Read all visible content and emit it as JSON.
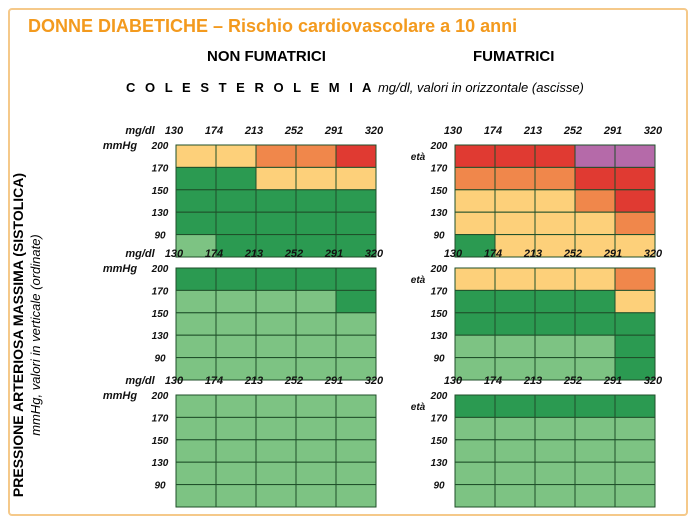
{
  "title": "DONNE DIABETICHE – Rischio cardiovascolare a 10 anni",
  "columns": {
    "left": "NON FUMATRICI",
    "right": "FUMATRICI"
  },
  "cholesterol_label": {
    "bold": "C O L E S T E R O L E M I A",
    "italic": "mg/dl, valori in orizzontale (ascisse)"
  },
  "pressure_label": {
    "main": "PRESSIONE ARTERIOSA MASSIMA (SISTOLICA)",
    "sub": "mmHg, valori in verticale (ordinate)"
  },
  "colors": {
    "light_green": "#7dc383",
    "dark_green": "#2b9a51",
    "yellow": "#fdd07a",
    "orange": "#f0874b",
    "red": "#e03a32",
    "purple": "#b56aa9"
  },
  "chart_data": {
    "type": "heatmap",
    "x_unit": "mg/dl",
    "y_unit": "mmHg",
    "age_label": "età",
    "x_ticks": [
      "130",
      "174",
      "213",
      "252",
      "291",
      "320"
    ],
    "y_ticks": [
      "200",
      "170",
      "150",
      "130",
      "90"
    ],
    "legend_note": "cells colored by risk class: light_green < dark_green < yellow < orange < red < purple",
    "panels": [
      {
        "row": 1,
        "group": "NON FUMATRICI",
        "show_age": false,
        "show_units": true,
        "cells": [
          [
            "yellow",
            "yellow",
            "orange",
            "orange",
            "red"
          ],
          [
            "dark_green",
            "dark_green",
            "yellow",
            "yellow",
            "yellow"
          ],
          [
            "dark_green",
            "dark_green",
            "dark_green",
            "dark_green",
            "dark_green"
          ],
          [
            "dark_green",
            "dark_green",
            "dark_green",
            "dark_green",
            "dark_green"
          ],
          [
            "light_green",
            "dark_green",
            "dark_green",
            "dark_green",
            "dark_green"
          ]
        ]
      },
      {
        "row": 1,
        "group": "FUMATRICI",
        "show_age": true,
        "show_units": false,
        "cells": [
          [
            "red",
            "red",
            "red",
            "purple",
            "purple"
          ],
          [
            "orange",
            "orange",
            "orange",
            "red",
            "red"
          ],
          [
            "yellow",
            "yellow",
            "yellow",
            "orange",
            "red"
          ],
          [
            "yellow",
            "yellow",
            "yellow",
            "yellow",
            "orange"
          ],
          [
            "dark_green",
            "yellow",
            "yellow",
            "yellow",
            "yellow"
          ]
        ]
      },
      {
        "row": 2,
        "group": "NON FUMATRICI",
        "show_age": false,
        "show_units": true,
        "cells": [
          [
            "dark_green",
            "dark_green",
            "dark_green",
            "dark_green",
            "dark_green"
          ],
          [
            "light_green",
            "light_green",
            "light_green",
            "light_green",
            "dark_green"
          ],
          [
            "light_green",
            "light_green",
            "light_green",
            "light_green",
            "light_green"
          ],
          [
            "light_green",
            "light_green",
            "light_green",
            "light_green",
            "light_green"
          ],
          [
            "light_green",
            "light_green",
            "light_green",
            "light_green",
            "light_green"
          ]
        ]
      },
      {
        "row": 2,
        "group": "FUMATRICI",
        "show_age": true,
        "show_units": false,
        "cells": [
          [
            "yellow",
            "yellow",
            "yellow",
            "yellow",
            "orange"
          ],
          [
            "dark_green",
            "dark_green",
            "dark_green",
            "dark_green",
            "yellow"
          ],
          [
            "dark_green",
            "dark_green",
            "dark_green",
            "dark_green",
            "dark_green"
          ],
          [
            "light_green",
            "light_green",
            "light_green",
            "light_green",
            "dark_green"
          ],
          [
            "light_green",
            "light_green",
            "light_green",
            "light_green",
            "dark_green"
          ]
        ]
      },
      {
        "row": 3,
        "group": "NON FUMATRICI",
        "show_age": false,
        "show_units": true,
        "cells": [
          [
            "light_green",
            "light_green",
            "light_green",
            "light_green",
            "light_green"
          ],
          [
            "light_green",
            "light_green",
            "light_green",
            "light_green",
            "light_green"
          ],
          [
            "light_green",
            "light_green",
            "light_green",
            "light_green",
            "light_green"
          ],
          [
            "light_green",
            "light_green",
            "light_green",
            "light_green",
            "light_green"
          ],
          [
            "light_green",
            "light_green",
            "light_green",
            "light_green",
            "light_green"
          ]
        ]
      },
      {
        "row": 3,
        "group": "FUMATRICI",
        "show_age": true,
        "show_units": false,
        "cells": [
          [
            "dark_green",
            "dark_green",
            "dark_green",
            "dark_green",
            "dark_green"
          ],
          [
            "light_green",
            "light_green",
            "light_green",
            "light_green",
            "light_green"
          ],
          [
            "light_green",
            "light_green",
            "light_green",
            "light_green",
            "light_green"
          ],
          [
            "light_green",
            "light_green",
            "light_green",
            "light_green",
            "light_green"
          ],
          [
            "light_green",
            "light_green",
            "light_green",
            "light_green",
            "light_green"
          ]
        ]
      }
    ]
  }
}
